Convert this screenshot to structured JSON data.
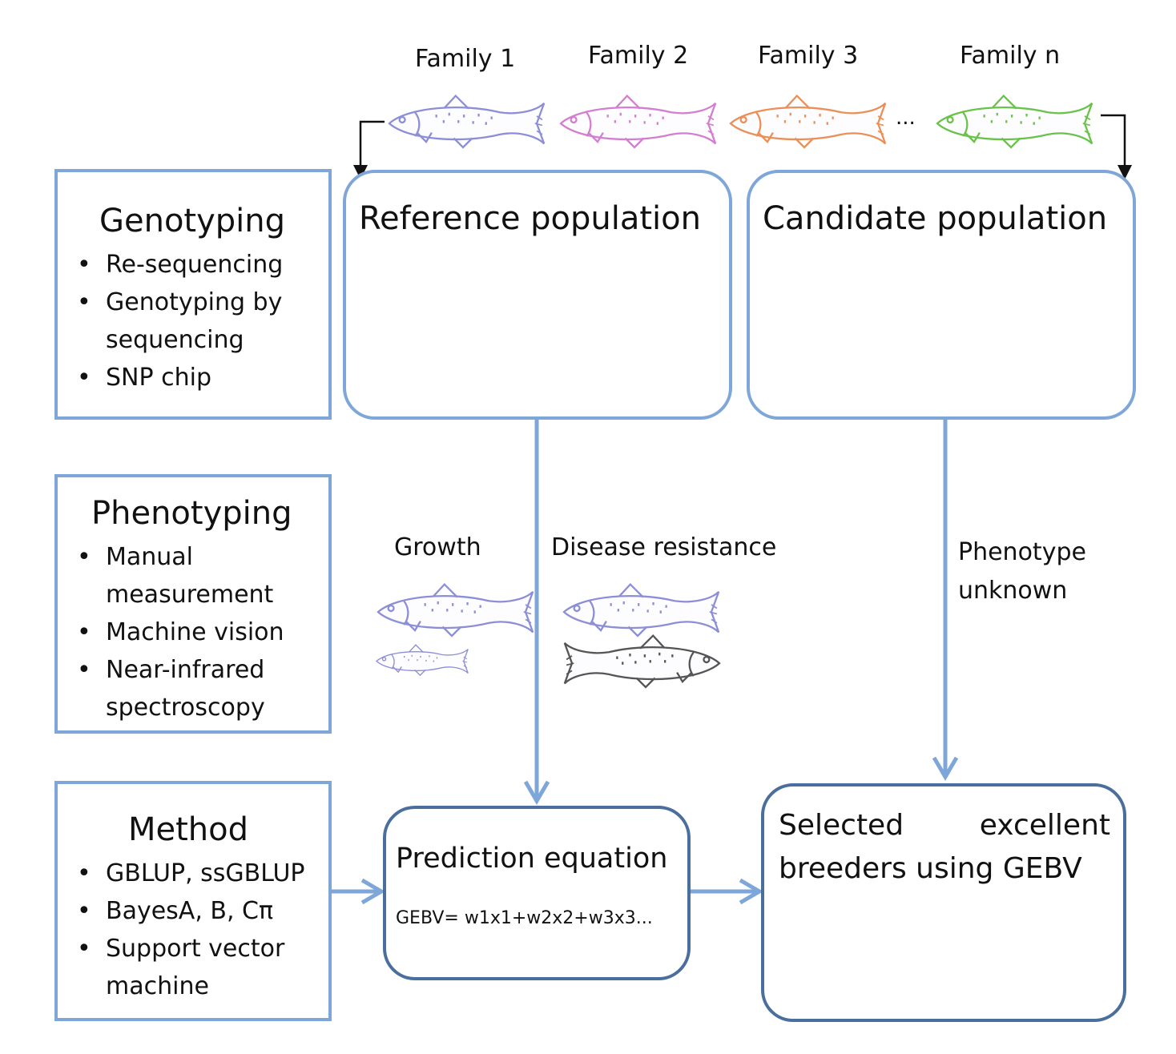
{
  "families": [
    "Family 1",
    "Family 2",
    "Family 3",
    "Family n"
  ],
  "ellipsis": "...",
  "genotyping": {
    "title": "Genotyping",
    "items": [
      "Re-sequencing",
      "Genotyping by sequencing",
      "SNP chip"
    ]
  },
  "phenotyping": {
    "title": "Phenotyping",
    "items": [
      "Manual measurement",
      "Machine vision",
      "Near-infrared spectroscopy"
    ]
  },
  "method": {
    "title": "Method",
    "items": [
      "GBLUP, ssGBLUP",
      "BayesA, B, Cπ",
      "Support vector machine"
    ]
  },
  "reference": {
    "title": "Reference population"
  },
  "candidate": {
    "title": "Candidate population"
  },
  "traits": {
    "growth": "Growth",
    "disease": "Disease resistance",
    "unknown": "Phenotype unknown"
  },
  "prediction": {
    "title": "Prediction equation",
    "formula": "GEBV= w1x1+w2x2+w3x3..."
  },
  "selected": {
    "title": "Selected excellent breeders using GEBV"
  },
  "colors": {
    "box_border": "#7ea6d8",
    "box_border_dark": "#4a6f9c",
    "arrow": "#7ea6d8",
    "family_1": "#8c8fd6",
    "family_2": "#d27fd0",
    "family_3": "#eb8f58",
    "family_n": "#6bc24a",
    "diseased": "#555555"
  }
}
